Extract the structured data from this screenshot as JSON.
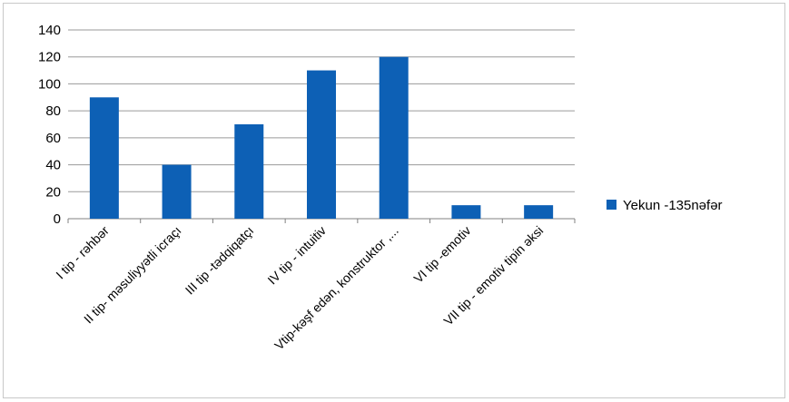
{
  "chart_data": {
    "type": "bar",
    "categories": [
      "I tip - rəhbər",
      "II tip- məsuliyyətli icraçı",
      "III tip -tədqiqatçı",
      "IV tip - intuitiv",
      "Vtip-kəşf edən, konstruktor ,...",
      "VI tip -emotiv",
      "VII tip - emotiv tipin əksi"
    ],
    "series": [
      {
        "name": "Yekun -135nəfər",
        "values": [
          90,
          40,
          70,
          110,
          120,
          10,
          10
        ],
        "color": "#0d60b5"
      }
    ],
    "ylim": [
      0,
      140
    ],
    "yticks": [
      0,
      20,
      40,
      60,
      80,
      100,
      120,
      140
    ],
    "grid": true,
    "legend_position": "right"
  }
}
